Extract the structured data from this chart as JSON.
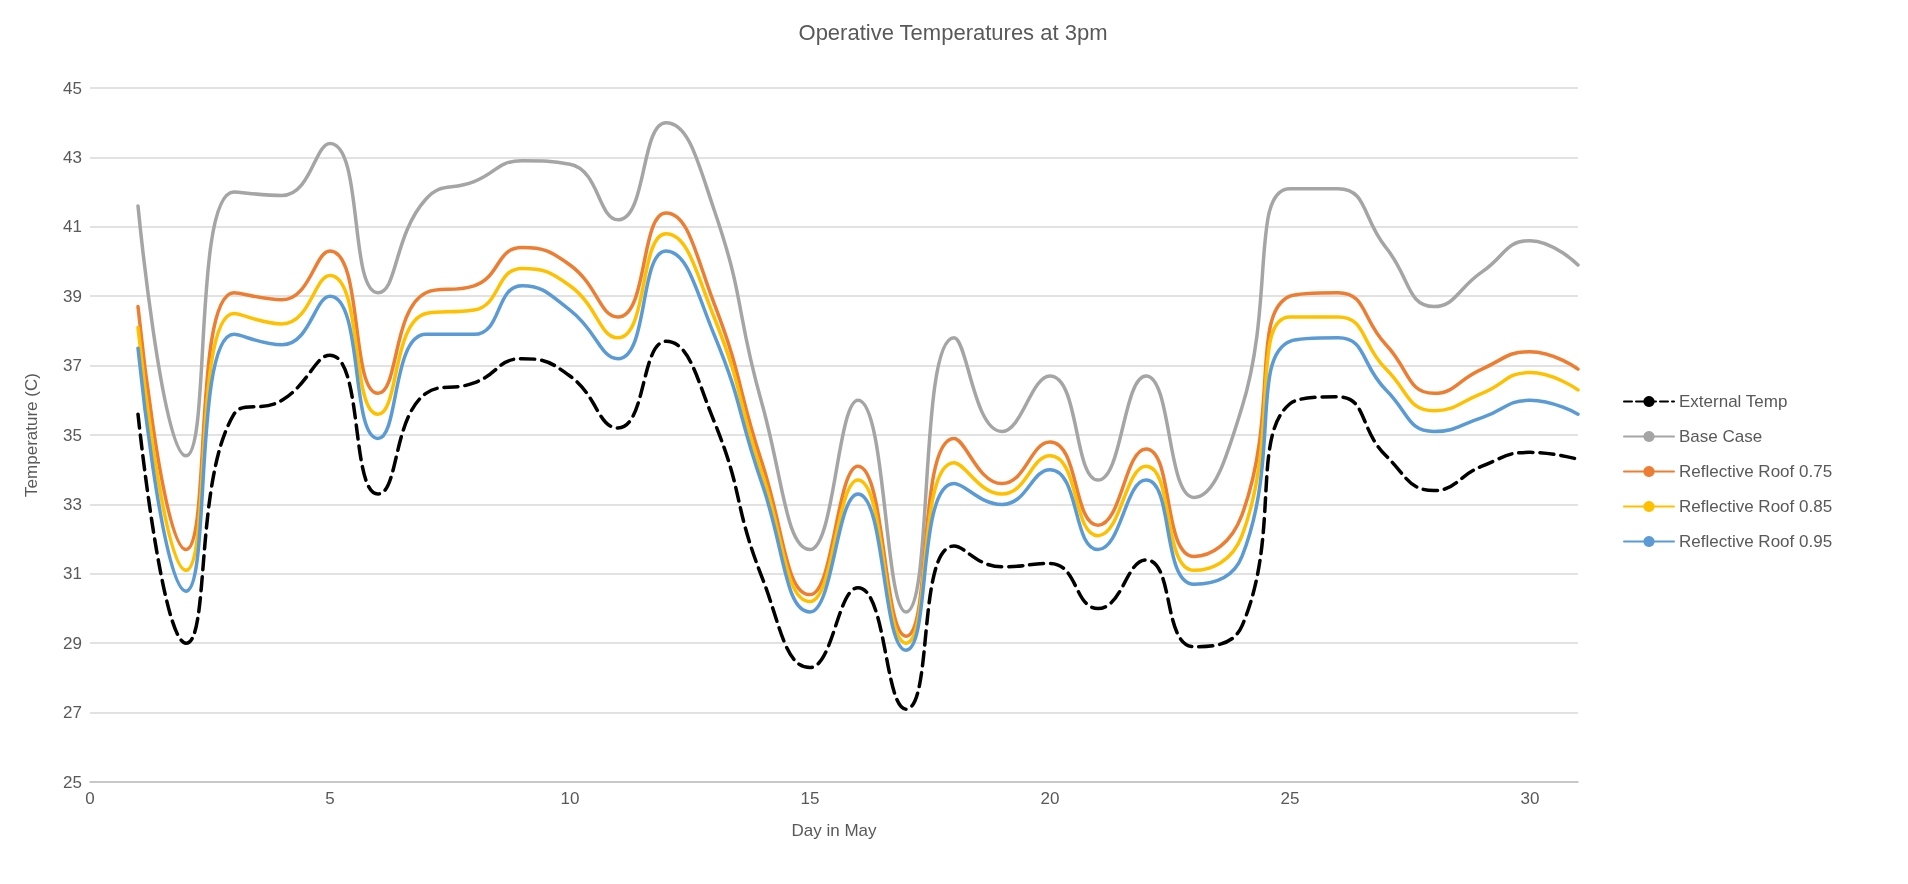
{
  "chart_data": {
    "type": "line",
    "title": "Operative Temperatures at 3pm",
    "xlabel": "Day in May",
    "ylabel": "Temperature (C)",
    "x": [
      1,
      2,
      3,
      4,
      5,
      6,
      7,
      8,
      9,
      10,
      11,
      12,
      13,
      14,
      15,
      16,
      17,
      18,
      19,
      20,
      21,
      22,
      23,
      24,
      25,
      26,
      27,
      28,
      29,
      30,
      31
    ],
    "series": [
      {
        "name": "External Temp",
        "color": "#000000",
        "line_style": "dashed",
        "values": [
          35.6,
          29.0,
          35.6,
          36.0,
          37.3,
          33.3,
          36.2,
          36.5,
          37.2,
          36.7,
          35.2,
          37.7,
          35.4,
          30.9,
          28.3,
          30.6,
          27.1,
          31.8,
          31.2,
          31.3,
          30.0,
          31.4,
          28.9,
          29.5,
          35.9,
          36.1,
          34.4,
          33.4,
          34.1,
          34.5,
          34.3
        ]
      },
      {
        "name": "Base Case",
        "color": "#a5a5a5",
        "values": [
          41.6,
          34.4,
          42.0,
          41.9,
          43.4,
          39.1,
          41.8,
          42.3,
          42.9,
          42.8,
          41.2,
          44.0,
          41.5,
          35.9,
          31.7,
          36.0,
          29.9,
          37.8,
          35.1,
          36.7,
          33.7,
          36.7,
          33.2,
          35.8,
          42.1,
          42.1,
          40.4,
          38.7,
          39.7,
          40.6,
          39.9
        ]
      },
      {
        "name": "Reflective Roof 0.75",
        "color": "#ed7d31",
        "values": [
          38.7,
          31.7,
          39.1,
          38.9,
          40.3,
          36.2,
          39.1,
          39.3,
          40.4,
          39.9,
          38.4,
          41.4,
          38.8,
          34.2,
          30.4,
          34.1,
          29.2,
          34.9,
          33.6,
          34.8,
          32.4,
          34.6,
          31.5,
          32.7,
          39.0,
          39.1,
          37.6,
          36.2,
          36.9,
          37.4,
          36.9
        ]
      },
      {
        "name": "Reflective Roof 0.85",
        "color": "#ffc000",
        "values": [
          38.1,
          31.1,
          38.5,
          38.2,
          39.6,
          35.6,
          38.5,
          38.6,
          39.8,
          39.3,
          37.8,
          40.8,
          38.4,
          33.9,
          30.2,
          33.7,
          29.0,
          34.2,
          33.3,
          34.4,
          32.1,
          34.1,
          31.1,
          32.1,
          38.4,
          38.4,
          36.9,
          35.7,
          36.2,
          36.8,
          36.3
        ]
      },
      {
        "name": "Reflective Roof 0.95",
        "color": "#5b9bd5",
        "values": [
          37.5,
          30.5,
          37.9,
          37.6,
          39.0,
          34.9,
          37.9,
          37.9,
          39.3,
          38.6,
          37.2,
          40.3,
          37.9,
          33.6,
          29.9,
          33.3,
          28.8,
          33.6,
          33.0,
          34.0,
          31.7,
          33.7,
          30.7,
          31.5,
          37.7,
          37.8,
          36.3,
          35.1,
          35.5,
          36.0,
          35.6
        ]
      }
    ],
    "xlim": [
      0,
      31
    ],
    "xticks": [
      0,
      5,
      10,
      15,
      20,
      25,
      30
    ],
    "ylim": [
      25,
      45
    ],
    "yticks": [
      25,
      27,
      29,
      31,
      33,
      35,
      37,
      39,
      41,
      43,
      45
    ],
    "grid": "y",
    "legend": "right",
    "marker": "none",
    "line_style": "solid"
  }
}
